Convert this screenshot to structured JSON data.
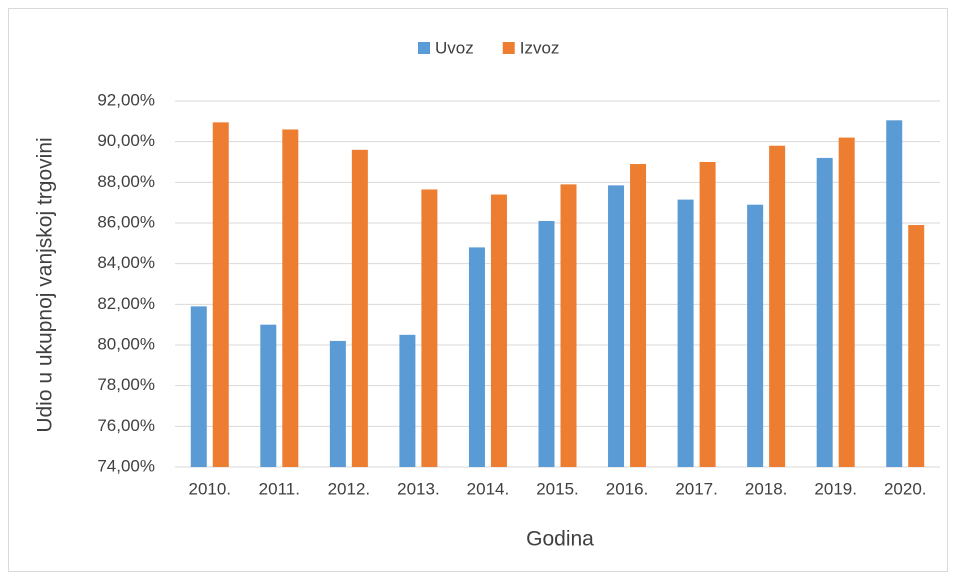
{
  "chart_data": {
    "type": "bar",
    "categories": [
      "2010.",
      "2011.",
      "2012.",
      "2013.",
      "2014.",
      "2015.",
      "2016.",
      "2017.",
      "2018.",
      "2019.",
      "2020."
    ],
    "series": [
      {
        "name": "Uvoz",
        "color": "#5b9bd5",
        "values": [
          81.9,
          81.0,
          80.2,
          80.5,
          84.8,
          86.1,
          87.85,
          87.15,
          86.9,
          89.2,
          91.05
        ]
      },
      {
        "name": "Izvoz",
        "color": "#ed7d31",
        "values": [
          90.95,
          90.6,
          89.6,
          87.65,
          87.4,
          87.9,
          88.9,
          89.0,
          89.8,
          90.2,
          85.9
        ]
      }
    ],
    "ylim": [
      74,
      92
    ],
    "yticks": [
      {
        "value": 74,
        "label": "74,00%"
      },
      {
        "value": 76,
        "label": "76,00%"
      },
      {
        "value": 78,
        "label": "78,00%"
      },
      {
        "value": 80,
        "label": "80,00%"
      },
      {
        "value": 82,
        "label": "82,00%"
      },
      {
        "value": 84,
        "label": "84,00%"
      },
      {
        "value": 86,
        "label": "86,00%"
      },
      {
        "value": 88,
        "label": "88,00%"
      },
      {
        "value": 90,
        "label": "90,00%"
      },
      {
        "value": 92,
        "label": "92,00%"
      }
    ],
    "ylabel": "Udio u ukupnoj vanjskoj trgovini",
    "xlabel": "Godina",
    "grid": true,
    "legend": "top"
  }
}
